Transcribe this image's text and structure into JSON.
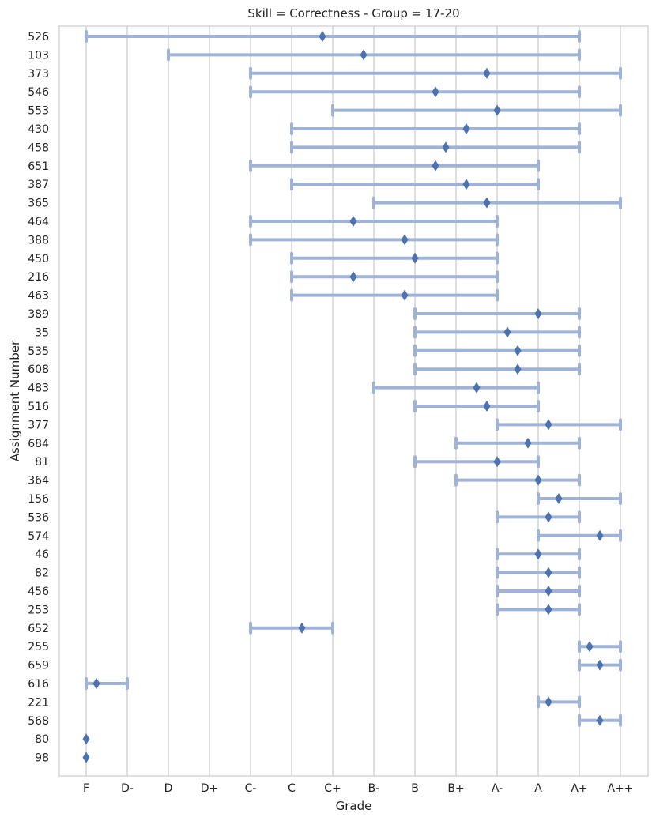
{
  "chart_data": {
    "type": "range-dot",
    "title": "Skill = Correctness - Group = 17-20",
    "xlabel": "Grade",
    "ylabel": "Assignment Number",
    "grades": [
      "F",
      "D-",
      "D",
      "D+",
      "C-",
      "C",
      "C+",
      "B-",
      "B",
      "B+",
      "A-",
      "A",
      "A+",
      "A++"
    ],
    "colors": {
      "range": "#9fb3d8",
      "marker": "#4c72b0",
      "grid": "#cccccc",
      "frame": "#cccccc"
    },
    "rows": [
      {
        "label": "526",
        "low": 0,
        "high": 12,
        "mean": 5.75
      },
      {
        "label": "103",
        "low": 2,
        "high": 12,
        "mean": 6.75
      },
      {
        "label": "373",
        "low": 4,
        "high": 13,
        "mean": 9.75
      },
      {
        "label": "546",
        "low": 4,
        "high": 12,
        "mean": 8.5
      },
      {
        "label": "553",
        "low": 6,
        "high": 13,
        "mean": 10.0
      },
      {
        "label": "430",
        "low": 5,
        "high": 12,
        "mean": 9.25
      },
      {
        "label": "458",
        "low": 5,
        "high": 12,
        "mean": 8.75
      },
      {
        "label": "651",
        "low": 4,
        "high": 11,
        "mean": 8.5
      },
      {
        "label": "387",
        "low": 5,
        "high": 11,
        "mean": 9.25
      },
      {
        "label": "365",
        "low": 7,
        "high": 13,
        "mean": 9.75
      },
      {
        "label": "464",
        "low": 4,
        "high": 10,
        "mean": 6.5
      },
      {
        "label": "388",
        "low": 4,
        "high": 10,
        "mean": 7.75
      },
      {
        "label": "450",
        "low": 5,
        "high": 10,
        "mean": 8.0
      },
      {
        "label": "216",
        "low": 5,
        "high": 10,
        "mean": 6.5
      },
      {
        "label": "463",
        "low": 5,
        "high": 10,
        "mean": 7.75
      },
      {
        "label": "389",
        "low": 8,
        "high": 12,
        "mean": 11.0
      },
      {
        "label": "35",
        "low": 8,
        "high": 12,
        "mean": 10.25
      },
      {
        "label": "535",
        "low": 8,
        "high": 12,
        "mean": 10.5
      },
      {
        "label": "608",
        "low": 8,
        "high": 12,
        "mean": 10.5
      },
      {
        "label": "483",
        "low": 7,
        "high": 11,
        "mean": 9.5
      },
      {
        "label": "516",
        "low": 8,
        "high": 11,
        "mean": 9.75
      },
      {
        "label": "377",
        "low": 10,
        "high": 13,
        "mean": 11.25
      },
      {
        "label": "684",
        "low": 9,
        "high": 12,
        "mean": 10.75
      },
      {
        "label": "81",
        "low": 8,
        "high": 11,
        "mean": 10.0
      },
      {
        "label": "364",
        "low": 9,
        "high": 12,
        "mean": 11.0
      },
      {
        "label": "156",
        "low": 11,
        "high": 13,
        "mean": 11.5
      },
      {
        "label": "536",
        "low": 10,
        "high": 12,
        "mean": 11.25
      },
      {
        "label": "574",
        "low": 11,
        "high": 13,
        "mean": 12.5
      },
      {
        "label": "46",
        "low": 10,
        "high": 12,
        "mean": 11.0
      },
      {
        "label": "82",
        "low": 10,
        "high": 12,
        "mean": 11.25
      },
      {
        "label": "456",
        "low": 10,
        "high": 12,
        "mean": 11.25
      },
      {
        "label": "253",
        "low": 10,
        "high": 12,
        "mean": 11.25
      },
      {
        "label": "652",
        "low": 4,
        "high": 6,
        "mean": 5.25
      },
      {
        "label": "255",
        "low": 12,
        "high": 13,
        "mean": 12.25
      },
      {
        "label": "659",
        "low": 12,
        "high": 13,
        "mean": 12.5
      },
      {
        "label": "616",
        "low": 0,
        "high": 1,
        "mean": 0.25
      },
      {
        "label": "221",
        "low": 11,
        "high": 12,
        "mean": 11.25
      },
      {
        "label": "568",
        "low": 12,
        "high": 13,
        "mean": 12.5
      },
      {
        "label": "80",
        "low": 0,
        "high": 0,
        "mean": 0.0
      },
      {
        "label": "98",
        "low": 0,
        "high": 0,
        "mean": 0.0
      }
    ]
  }
}
